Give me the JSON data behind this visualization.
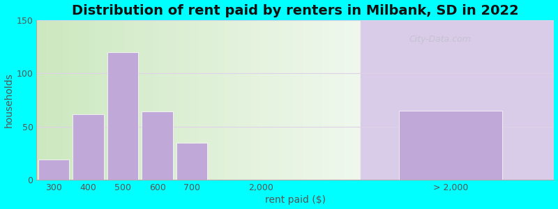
{
  "title": "Distribution of rent paid by renters in Milbank, SD in 2022",
  "xlabel": "rent paid ($)",
  "ylabel": "households",
  "background_color": "#00FFFF",
  "plot_bg_gradient_left": "#c8e6c0",
  "plot_bg_gradient_right": "#f5f5f0",
  "plot_bg_right_section": "#d8cce8",
  "bar_color": "#c0a8d8",
  "ylim": [
    0,
    150
  ],
  "yticks": [
    0,
    50,
    100,
    150
  ],
  "values": [
    19,
    62,
    120,
    64,
    35,
    65
  ],
  "watermark_text": "City-Data.com",
  "title_fontsize": 14,
  "axis_label_fontsize": 10,
  "tick_fontsize": 9,
  "grid_color": "#dddddd"
}
